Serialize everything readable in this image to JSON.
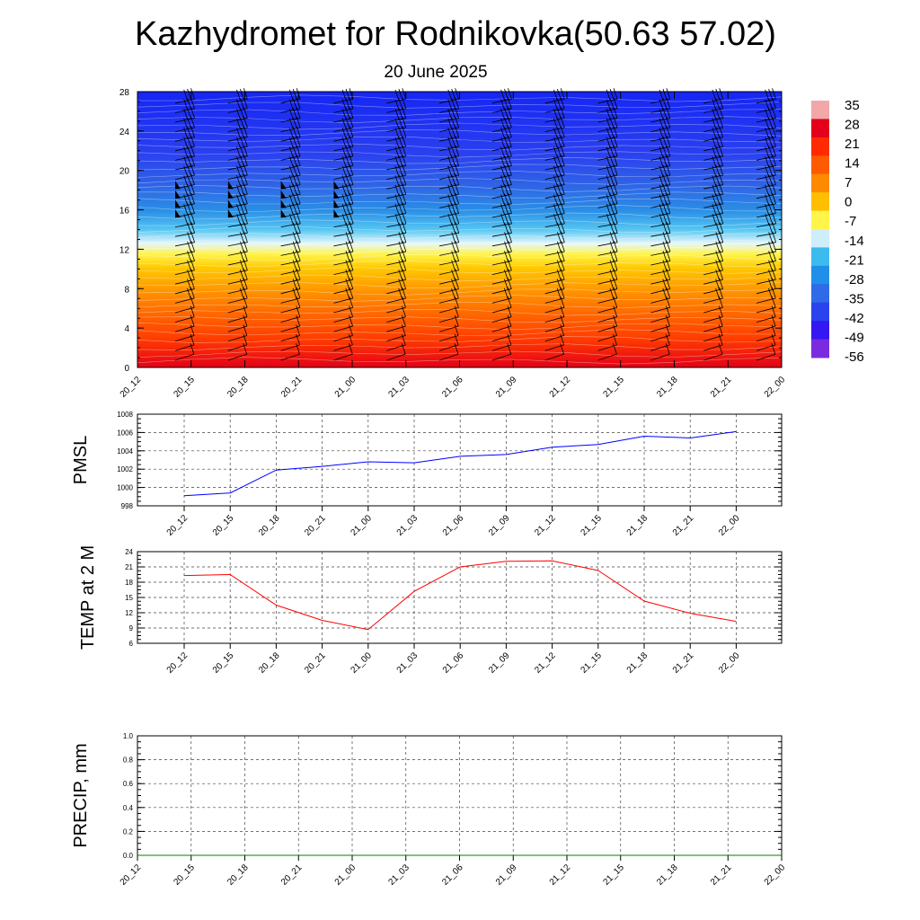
{
  "header": {
    "title": "Kazhydromet for Rodnikovka(50.63 57.02)",
    "subtitle": "20 June 2025"
  },
  "chart_data": [
    {
      "type": "heatmap",
      "name": "vertical-profile",
      "title": "",
      "x_tick_labels": [
        "20_12",
        "20_15",
        "20_18",
        "20_21",
        "21_00",
        "21_03",
        "21_06",
        "21_09",
        "21_12",
        "21_15",
        "21_18",
        "21_21",
        "22_00"
      ],
      "y_ticks": [
        0,
        4,
        8,
        12,
        16,
        20,
        24,
        28
      ],
      "ylim": [
        0,
        28
      ],
      "colorbar_labels": [
        "35",
        "28",
        "21",
        "14",
        "7",
        "0",
        "-7",
        "-14",
        "-21",
        "-28",
        "-35",
        "-42",
        "-49",
        "-56"
      ],
      "colorbar_colors": [
        "#f2a8a8",
        "#e4001c",
        "#ff2a00",
        "#ff5a00",
        "#ff8a00",
        "#ffbf00",
        "#fff54a",
        "#cfeefc",
        "#3cbbef",
        "#1f8fe8",
        "#2f6ae8",
        "#2a43ee",
        "#3417f2",
        "#7a2be0"
      ],
      "wind_barb_times": [
        "20_14",
        "20_17",
        "20_20",
        "20_23",
        "21_02",
        "21_05",
        "21_08",
        "21_11",
        "21_14",
        "21_17",
        "21_20",
        "21_23"
      ]
    },
    {
      "type": "line",
      "name": "pmsl",
      "ylabel": "PMSL",
      "x": [
        "20_12",
        "20_15",
        "20_18",
        "20_21",
        "21_00",
        "21_03",
        "21_06",
        "21_09",
        "21_12",
        "21_15",
        "21_18",
        "21_21",
        "22_00"
      ],
      "y_ticks": [
        998,
        1000,
        1002,
        1004,
        1006,
        1008
      ],
      "ylim": [
        998,
        1008
      ],
      "series": [
        {
          "color": "#0000ff",
          "values": [
            999.1,
            999.4,
            1001.9,
            1002.3,
            1002.8,
            1002.7,
            1003.4,
            1003.6,
            1004.4,
            1004.7,
            1005.6,
            1005.4,
            1006.1
          ]
        }
      ],
      "grid": true
    },
    {
      "type": "line",
      "name": "temp2m",
      "ylabel": "TEMP at 2 M",
      "x": [
        "20_12",
        "20_15",
        "20_18",
        "20_21",
        "21_00",
        "21_03",
        "21_06",
        "21_09",
        "21_12",
        "21_15",
        "21_18",
        "21_21",
        "22_00"
      ],
      "y_ticks": [
        6,
        9,
        12,
        15,
        18,
        21,
        24
      ],
      "ylim": [
        6,
        24
      ],
      "series": [
        {
          "color": "#ff0000",
          "values": [
            19.3,
            19.5,
            13.5,
            10.5,
            8.7,
            16.2,
            21.0,
            22.1,
            22.2,
            20.3,
            14.3,
            11.9,
            10.3
          ]
        }
      ],
      "grid": true
    },
    {
      "type": "line",
      "name": "precip",
      "ylabel": "PRECIP, mm",
      "x_tick_labels": [
        "20_12",
        "20_15",
        "20_18",
        "20_21",
        "21_00",
        "21_03",
        "21_06",
        "21_09",
        "21_12",
        "21_15",
        "21_18",
        "21_21",
        "22_00"
      ],
      "y_ticks": [
        "0.0",
        "0.2",
        "0.4",
        "0.6",
        "0.8",
        "1.0"
      ],
      "ylim": [
        0,
        1
      ],
      "series": [
        {
          "color": "#008000",
          "values": [
            0,
            0,
            0,
            0,
            0,
            0,
            0,
            0,
            0,
            0,
            0,
            0,
            0
          ]
        }
      ],
      "grid": true
    }
  ]
}
